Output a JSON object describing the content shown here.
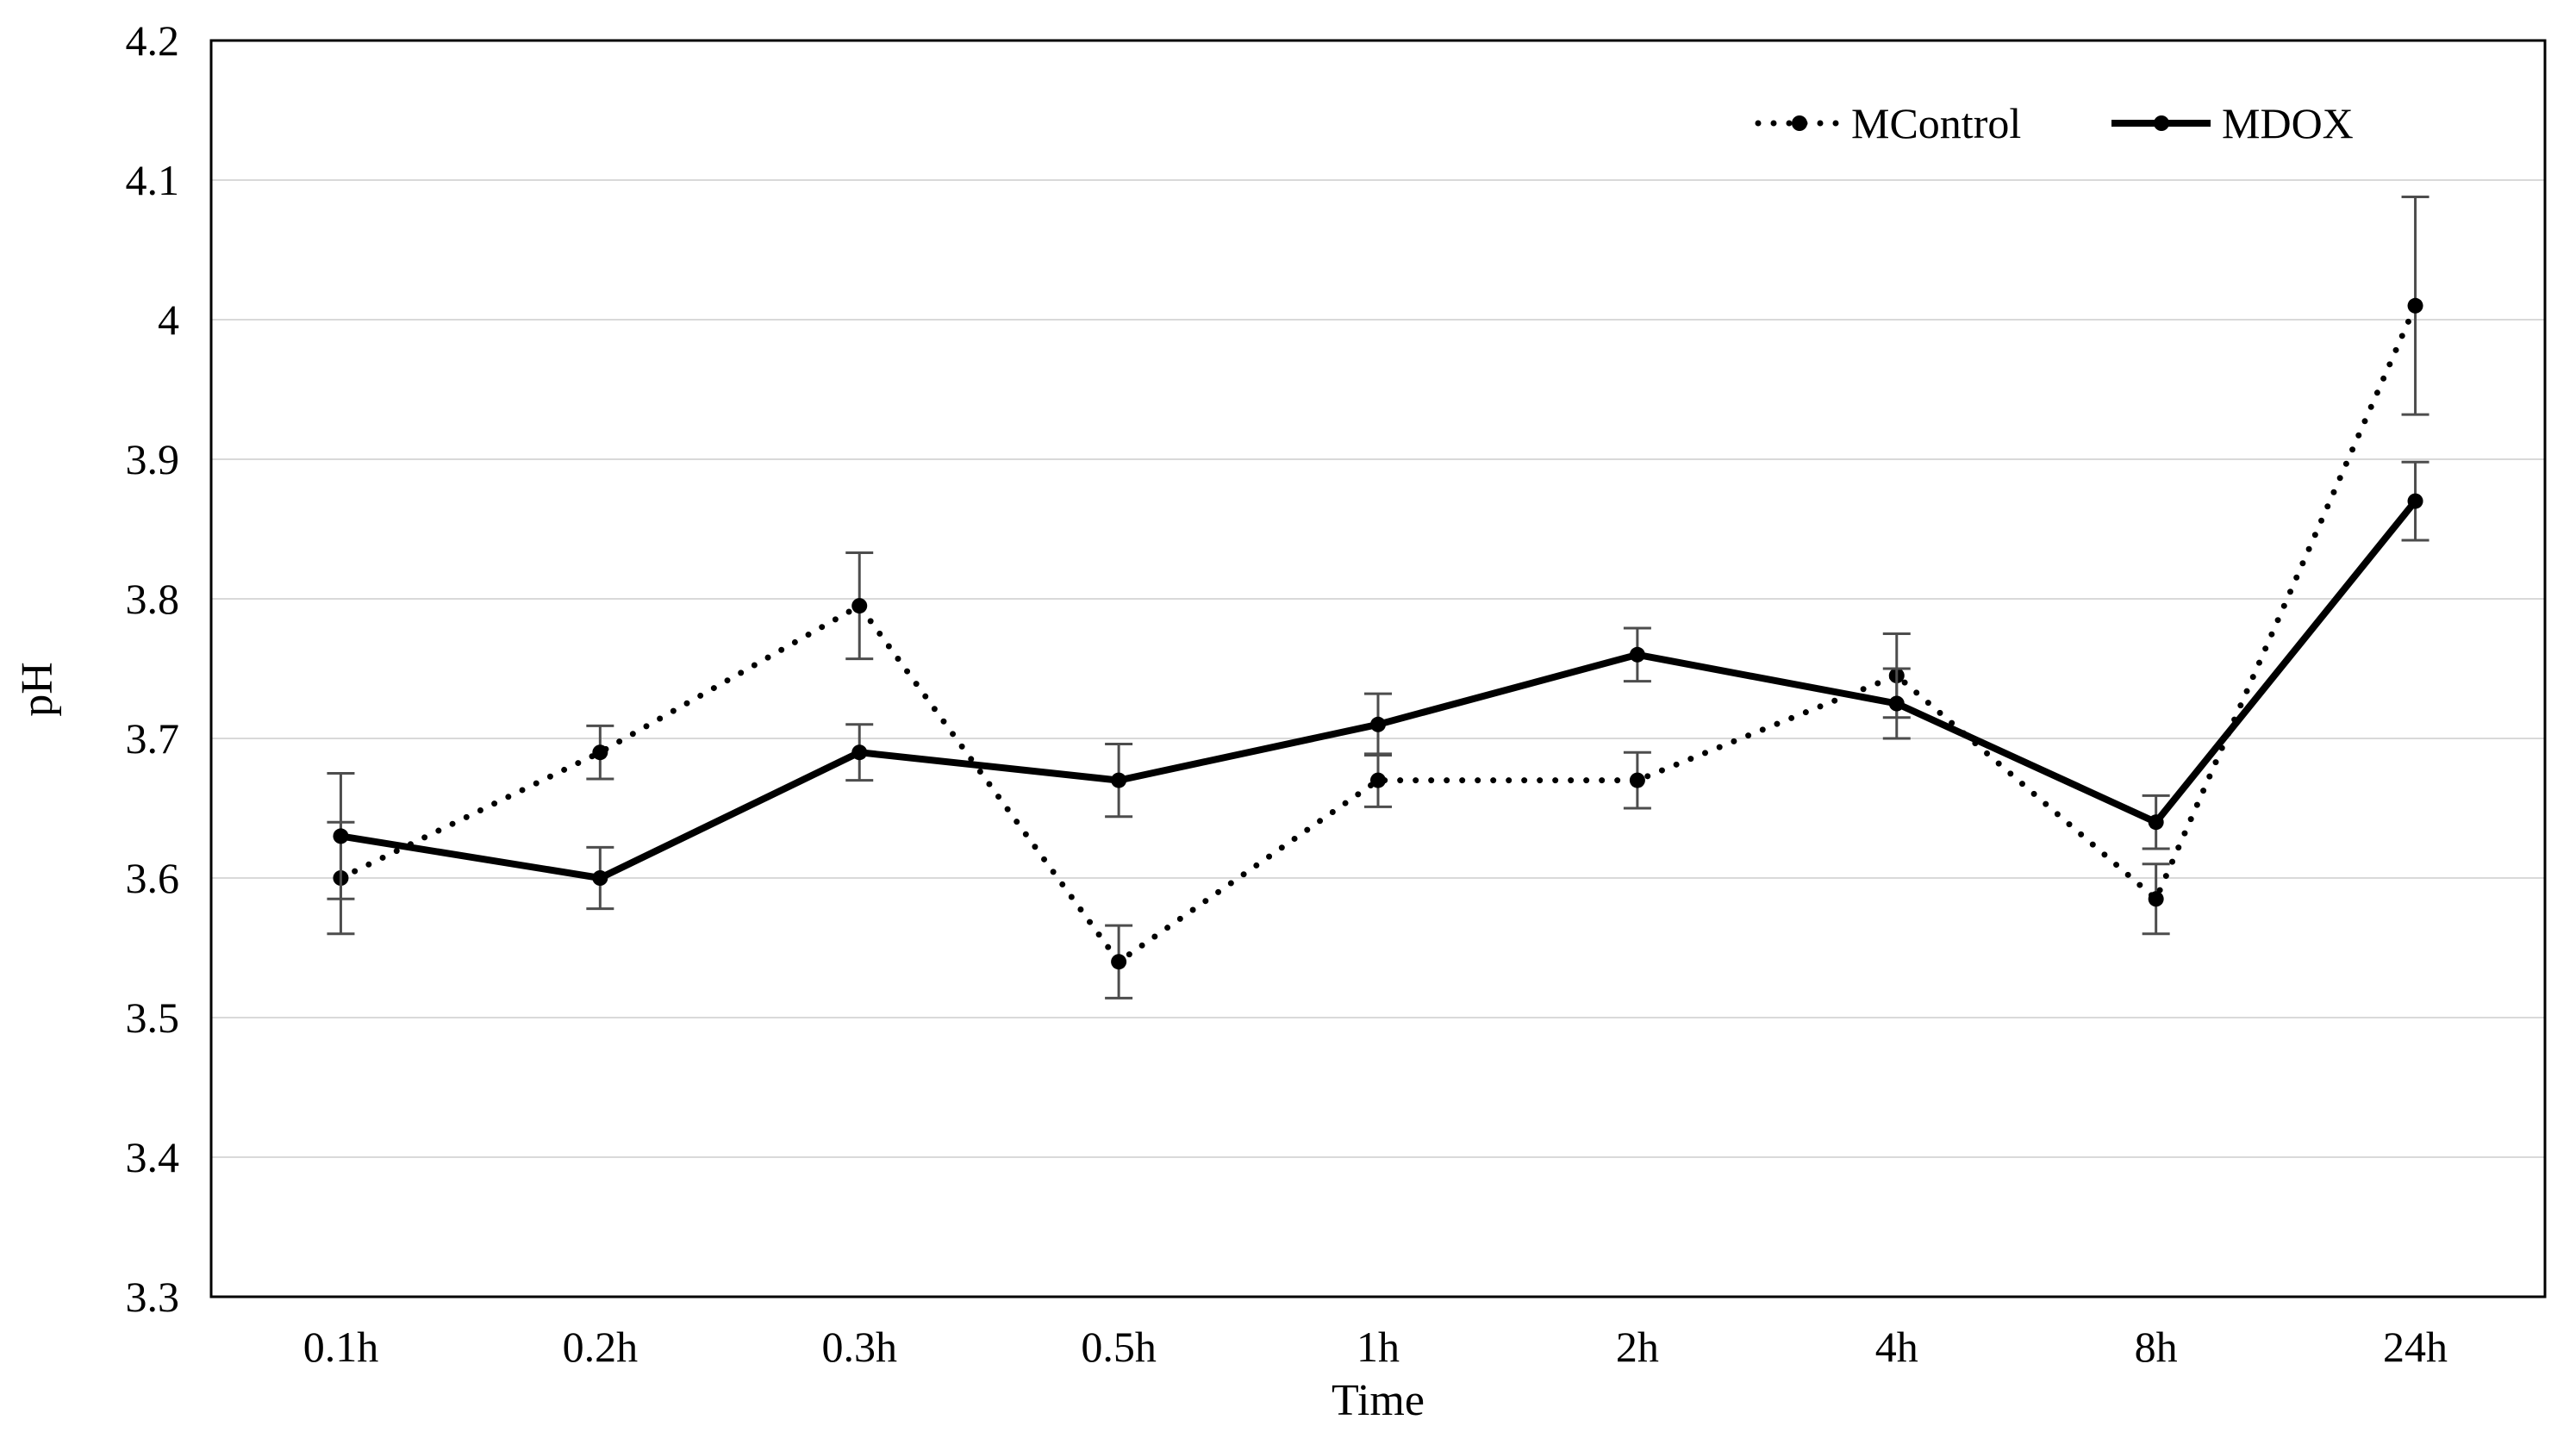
{
  "chart_data": {
    "type": "line",
    "title": "",
    "xlabel": "Time",
    "ylabel": "pH",
    "categories": [
      "0.1h",
      "0.2h",
      "0.3h",
      "0.5h",
      "1h",
      "2h",
      "4h",
      "8h",
      "24h"
    ],
    "ylim": [
      3.3,
      4.2
    ],
    "ytick_step": 0.1,
    "ytick_labels": [
      "3.3",
      "3.4",
      "3.5",
      "3.6",
      "3.7",
      "3.8",
      "3.9",
      "4",
      "4.1",
      "4.2"
    ],
    "grid": true,
    "legend_position": "top-right-inside",
    "legend": [
      {
        "label": "MControl",
        "sample": "dotted-line-with-dot-marker"
      },
      {
        "label": "MDOX",
        "sample": "solid-line-with-dot-marker"
      }
    ],
    "series": [
      {
        "name": "MControl",
        "style": "dotted",
        "marker": "circle",
        "values": [
          3.6,
          3.69,
          3.795,
          3.54,
          3.67,
          3.67,
          3.745,
          3.585,
          4.01
        ],
        "errors": [
          0.04,
          0.019,
          0.038,
          0.026,
          0.019,
          0.02,
          0.03,
          0.025,
          0.078
        ]
      },
      {
        "name": "MDOX",
        "style": "solid",
        "marker": "circle",
        "values": [
          3.63,
          3.6,
          3.69,
          3.67,
          3.71,
          3.76,
          3.725,
          3.64,
          3.87
        ],
        "errors": [
          0.045,
          0.022,
          0.02,
          0.026,
          0.022,
          0.019,
          0.025,
          0.019,
          0.028
        ]
      }
    ],
    "colors": {
      "series": "#000000",
      "gridline": "#D9D9D9",
      "error_bar": "#4D4D4D",
      "frame": "#000000",
      "background": "#FFFFFF",
      "text": "#000000"
    }
  }
}
